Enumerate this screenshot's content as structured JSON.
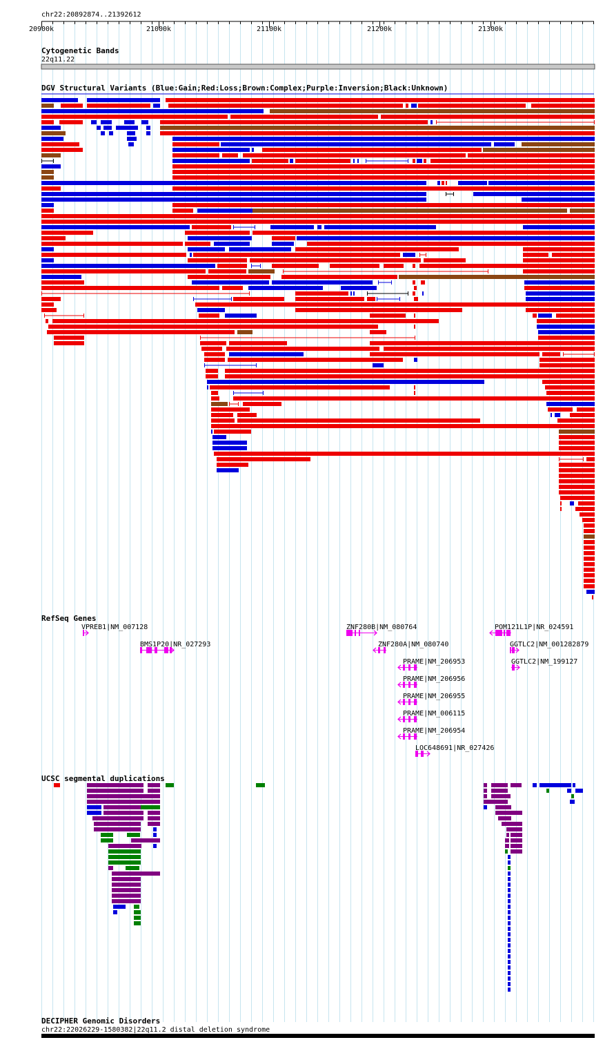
{
  "ruler": {
    "region_label": "chr22:20892874..21392612",
    "ticks": [
      {
        "pos": 20900000,
        "label": "20900k"
      },
      {
        "pos": 21000000,
        "label": "21000k"
      },
      {
        "pos": 21100000,
        "label": "21100k"
      },
      {
        "pos": 21200000,
        "label": "21200k"
      },
      {
        "pos": 21300000,
        "label": "21300k"
      }
    ]
  },
  "tracks": {
    "cytoband": {
      "title": "Cytogenetic Bands",
      "band": "22q11.22"
    },
    "dgv": {
      "title": "DGV Structural Variants (Blue:Gain;Red:Loss;Brown:Complex;Purple:Inversion;Black:Unknown)",
      "colors": {
        "gain": "#0000dd",
        "loss": "#ee0000",
        "complex": "#8b4513",
        "inversion": "#800080",
        "unknown": "#000000"
      }
    },
    "refseq": {
      "title": "RefSeq Genes",
      "color": "#ee00ee",
      "genes": [
        {
          "label": "VPREB1|NM_007128"
        },
        {
          "label": "BMS1P20|NR_027293"
        },
        {
          "label": "ZNF280B|NM_080764"
        },
        {
          "label": "ZNF280A|NM_080740"
        },
        {
          "label": "PRAME|NM_206953"
        },
        {
          "label": "PRAME|NM_206956"
        },
        {
          "label": "PRAME|NM_206955"
        },
        {
          "label": "PRAME|NM_006115"
        },
        {
          "label": "PRAME|NM_206954"
        },
        {
          "label": "LOC648691|NR_027426"
        },
        {
          "label": "POM121L1P|NR_024591"
        },
        {
          "label": "GGTLC2|NM_001282879"
        },
        {
          "label": "GGTLC2|NM_199127"
        }
      ]
    },
    "segdup": {
      "title": "UCSC segmental duplications",
      "colors": {
        "purple": "#800080",
        "blue": "#0000dd",
        "green": "#008000",
        "red": "#ee0000"
      }
    },
    "decipher": {
      "title": "DECIPHER Genomic Disorders",
      "label": "chr22:22026229-1580382|22q11.2 distal deletion syndrome"
    }
  }
}
